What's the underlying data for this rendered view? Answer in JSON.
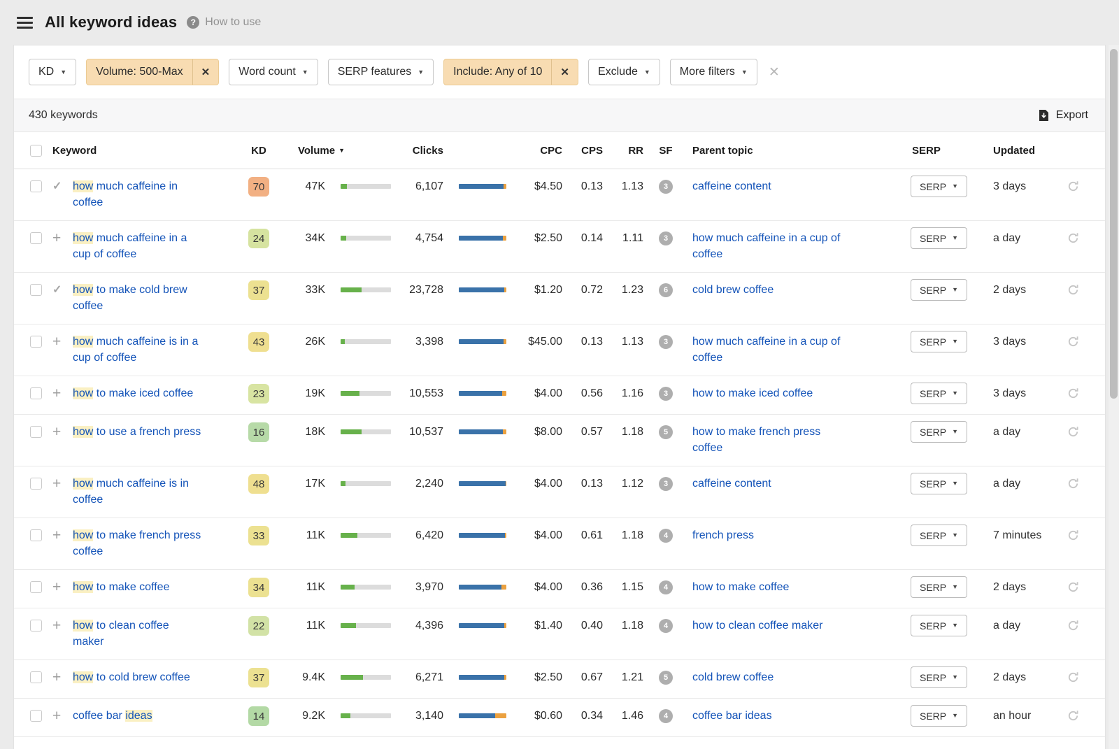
{
  "header": {
    "title": "All keyword ideas",
    "help_label": "How to use"
  },
  "filters": {
    "kd": {
      "label": "KD"
    },
    "volume": {
      "label": "Volume: 500-Max",
      "active": true
    },
    "word_count": {
      "label": "Word count"
    },
    "serp_features": {
      "label": "SERP features"
    },
    "include": {
      "label": "Include: Any of 10",
      "active": true
    },
    "exclude": {
      "label": "Exclude"
    },
    "more_filters": {
      "label": "More filters"
    }
  },
  "toolbar": {
    "count_label": "430 keywords",
    "export_label": "Export"
  },
  "table": {
    "columns": {
      "keyword": "Keyword",
      "kd": "KD",
      "volume": "Volume",
      "clicks": "Clicks",
      "cpc": "CPC",
      "cps": "CPS",
      "rr": "RR",
      "sf": "SF",
      "parent": "Parent topic",
      "serp": "SERP",
      "updated": "Updated"
    },
    "sort": {
      "column": "Volume",
      "direction": "desc"
    },
    "serp_button": "SERP",
    "rows": [
      {
        "action": "added",
        "keyword": [
          {
            "text": "how",
            "hl": true
          },
          {
            "text": " much caffeine in\ncoffee",
            "hl": false
          }
        ],
        "kd": "70",
        "kd_color": "#f2b083",
        "volume": "47K",
        "volume_bar_pct": 13,
        "clicks": "6,107",
        "clicks_orange_pct": 6,
        "cpc": "$4.50",
        "cps": "0.13",
        "rr": "1.13",
        "sf": "3",
        "parent_topic": "caffeine content",
        "updated": "3 days"
      },
      {
        "action": "add",
        "keyword": [
          {
            "text": "how",
            "hl": true
          },
          {
            "text": " much caffeine in a\ncup of coffee",
            "hl": false
          }
        ],
        "kd": "24",
        "kd_color": "#d6e3a0",
        "volume": "34K",
        "volume_bar_pct": 11,
        "clicks": "4,754",
        "clicks_orange_pct": 7,
        "cpc": "$2.50",
        "cps": "0.14",
        "rr": "1.11",
        "sf": "3",
        "parent_topic": "how much caffeine in a cup of\ncoffee",
        "updated": "a day"
      },
      {
        "action": "added",
        "keyword": [
          {
            "text": "how",
            "hl": true
          },
          {
            "text": " to make cold brew\ncoffee",
            "hl": false
          }
        ],
        "kd": "37",
        "kd_color": "#ece191",
        "volume": "33K",
        "volume_bar_pct": 42,
        "clicks": "23,728",
        "clicks_orange_pct": 5,
        "cpc": "$1.20",
        "cps": "0.72",
        "rr": "1.23",
        "sf": "6",
        "parent_topic": "cold brew coffee",
        "updated": "2 days"
      },
      {
        "action": "add",
        "keyword": [
          {
            "text": "how",
            "hl": true
          },
          {
            "text": " much caffeine is in a\ncup of coffee",
            "hl": false
          }
        ],
        "kd": "43",
        "kd_color": "#efdf90",
        "volume": "26K",
        "volume_bar_pct": 9,
        "clicks": "3,398",
        "clicks_orange_pct": 6,
        "cpc": "$45.00",
        "cps": "0.13",
        "rr": "1.13",
        "sf": "3",
        "parent_topic": "how much caffeine in a cup of\ncoffee",
        "updated": "3 days"
      },
      {
        "action": "add",
        "keyword": [
          {
            "text": "how",
            "hl": true
          },
          {
            "text": " to make iced coffee",
            "hl": false
          }
        ],
        "kd": "23",
        "kd_color": "#d8e4a2",
        "volume": "19K",
        "volume_bar_pct": 38,
        "clicks": "10,553",
        "clicks_orange_pct": 9,
        "cpc": "$4.00",
        "cps": "0.56",
        "rr": "1.16",
        "sf": "3",
        "parent_topic": "how to make iced coffee",
        "updated": "3 days"
      },
      {
        "action": "add",
        "keyword": [
          {
            "text": "how",
            "hl": true
          },
          {
            "text": " to use a french press",
            "hl": false
          }
        ],
        "kd": "16",
        "kd_color": "#b7daa8",
        "volume": "18K",
        "volume_bar_pct": 42,
        "clicks": "10,537",
        "clicks_orange_pct": 8,
        "cpc": "$8.00",
        "cps": "0.57",
        "rr": "1.18",
        "sf": "5",
        "parent_topic": "how to make french press\ncoffee",
        "updated": "a day"
      },
      {
        "action": "add",
        "keyword": [
          {
            "text": "how",
            "hl": true
          },
          {
            "text": " much caffeine is in\ncoffee",
            "hl": false
          }
        ],
        "kd": "48",
        "kd_color": "#efdf90",
        "volume": "17K",
        "volume_bar_pct": 10,
        "clicks": "2,240",
        "clicks_orange_pct": 2,
        "cpc": "$4.00",
        "cps": "0.13",
        "rr": "1.12",
        "sf": "3",
        "parent_topic": "caffeine content",
        "updated": "a day"
      },
      {
        "action": "add",
        "keyword": [
          {
            "text": "how",
            "hl": true
          },
          {
            "text": " to make french press\ncoffee",
            "hl": false
          }
        ],
        "kd": "33",
        "kd_color": "#ece191",
        "volume": "11K",
        "volume_bar_pct": 33,
        "clicks": "6,420",
        "clicks_orange_pct": 3,
        "cpc": "$4.00",
        "cps": "0.61",
        "rr": "1.18",
        "sf": "4",
        "parent_topic": "french press",
        "updated": "7 minutes"
      },
      {
        "action": "add",
        "keyword": [
          {
            "text": "how",
            "hl": true
          },
          {
            "text": " to make coffee",
            "hl": false
          }
        ],
        "kd": "34",
        "kd_color": "#ece191",
        "volume": "11K",
        "volume_bar_pct": 28,
        "clicks": "3,970",
        "clicks_orange_pct": 11,
        "cpc": "$4.00",
        "cps": "0.36",
        "rr": "1.15",
        "sf": "4",
        "parent_topic": "how to make coffee",
        "updated": "2 days"
      },
      {
        "action": "add",
        "keyword": [
          {
            "text": "how",
            "hl": true
          },
          {
            "text": " to clean coffee\nmaker",
            "hl": false
          }
        ],
        "kd": "22",
        "kd_color": "#d2e2a6",
        "volume": "11K",
        "volume_bar_pct": 30,
        "clicks": "4,396",
        "clicks_orange_pct": 4,
        "cpc": "$1.40",
        "cps": "0.40",
        "rr": "1.18",
        "sf": "4",
        "parent_topic": "how to clean coffee maker",
        "updated": "a day"
      },
      {
        "action": "add",
        "keyword": [
          {
            "text": "how",
            "hl": true
          },
          {
            "text": " to cold brew coffee",
            "hl": false
          }
        ],
        "kd": "37",
        "kd_color": "#ece191",
        "volume": "9.4K",
        "volume_bar_pct": 45,
        "clicks": "6,271",
        "clicks_orange_pct": 4,
        "cpc": "$2.50",
        "cps": "0.67",
        "rr": "1.21",
        "sf": "5",
        "parent_topic": "cold brew coffee",
        "updated": "2 days"
      },
      {
        "action": "add",
        "keyword": [
          {
            "text": "coffee bar ",
            "hl": false
          },
          {
            "text": "ideas",
            "hl": true
          }
        ],
        "kd": "14",
        "kd_color": "#b3d9a5",
        "volume": "9.2K",
        "volume_bar_pct": 20,
        "clicks": "3,140",
        "clicks_orange_pct": 24,
        "cpc": "$0.60",
        "cps": "0.34",
        "rr": "1.46",
        "sf": "4",
        "parent_topic": "coffee bar ideas",
        "updated": "an hour"
      }
    ]
  },
  "colors": {
    "link": "#1353b8",
    "highlight": "#faf0c3",
    "volume_fill": "#67b14b",
    "volume_track": "#dcdcdc",
    "clicks_blue": "#3a72a9",
    "clicks_orange": "#eba140",
    "chip_active_bg": "#f8dcb2",
    "chip_active_border": "#eccb93",
    "sf_badge": "#aeaeae"
  }
}
